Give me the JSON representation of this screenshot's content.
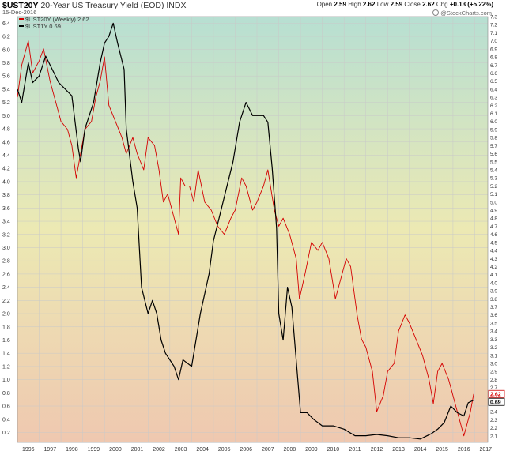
{
  "header": {
    "symbol": "$UST20Y",
    "title": "20-Year US Treasury Yield (EOD)",
    "exchange": "INDX",
    "date": "15-Dec-2016",
    "open_label": "Open",
    "open": "2.59",
    "high_label": "High",
    "high": "2.62",
    "low_label": "Low",
    "low": "2.59",
    "close_label": "Close",
    "close": "2.62",
    "chg_label": "Chg",
    "chg": "+0.13 (+5.22%)",
    "brand": "@StockCharts.com"
  },
  "legend": [
    {
      "label": "$UST20Y (Weekly) 2.62",
      "color": "#d40000"
    },
    {
      "label": "$UST1Y 0.69",
      "color": "#000000"
    }
  ],
  "colors": {
    "red_series": "#d40000",
    "black_series": "#000000",
    "bg_top": "#b7dfd2",
    "bg_mid": "#ece9b3",
    "bg_bottom": "#efc8b0"
  },
  "chart_data": {
    "type": "line",
    "grid": true,
    "legend_position": "top-left",
    "x_ticks": [
      "1996",
      "1997",
      "1998",
      "1999",
      "2000",
      "2001",
      "2002",
      "2003",
      "2004",
      "2005",
      "2006",
      "2007",
      "2008",
      "2009",
      "2010",
      "2011",
      "2012",
      "2013",
      "2014",
      "2015",
      "2016",
      "2017"
    ],
    "xlim": [
      1996.0,
      2017.6
    ],
    "left_axis": {
      "ylim": [
        0.05,
        6.5
      ],
      "ticks": [
        0.2,
        0.4,
        0.6,
        0.8,
        1.0,
        1.2,
        1.4,
        1.6,
        1.8,
        2.0,
        2.2,
        2.4,
        2.6,
        2.8,
        3.0,
        3.2,
        3.4,
        3.6,
        3.8,
        4.0,
        4.2,
        4.4,
        4.6,
        4.8,
        5.0,
        5.2,
        5.4,
        5.6,
        5.8,
        6.0,
        6.2,
        6.4
      ]
    },
    "right_axis": {
      "ylim": [
        2.02,
        7.3
      ],
      "ticks": [
        2.1,
        2.2,
        2.3,
        2.4,
        2.5,
        2.6,
        2.7,
        2.8,
        2.9,
        3.0,
        3.1,
        3.2,
        3.3,
        3.4,
        3.5,
        3.6,
        3.7,
        3.8,
        3.9,
        4.0,
        4.1,
        4.2,
        4.3,
        4.4,
        4.5,
        4.6,
        4.7,
        4.8,
        4.9,
        5.0,
        5.1,
        5.2,
        5.3,
        5.4,
        5.5,
        5.6,
        5.7,
        5.8,
        5.9,
        6.0,
        6.1,
        6.2,
        6.3,
        6.4,
        6.5,
        6.6,
        6.7,
        6.8,
        6.9,
        7.0,
        7.1,
        7.2,
        7.3
      ]
    },
    "series": [
      {
        "name": "$UST20Y (Weekly)",
        "axis": "right",
        "color": "#d40000",
        "x": [
          1996.0,
          1996.2,
          1996.5,
          1996.7,
          1997.0,
          1997.2,
          1997.5,
          1997.8,
          1998.0,
          1998.3,
          1998.5,
          1998.7,
          1998.9,
          1999.1,
          1999.4,
          1999.6,
          1999.8,
          2000.0,
          2000.2,
          2000.5,
          2000.8,
          2001.0,
          2001.3,
          2001.5,
          2001.8,
          2002.0,
          2002.3,
          2002.5,
          2002.7,
          2002.9,
          2003.1,
          2003.4,
          2003.5,
          2003.7,
          2003.9,
          2004.1,
          2004.3,
          2004.6,
          2004.9,
          2005.2,
          2005.5,
          2005.8,
          2006.0,
          2006.3,
          2006.5,
          2006.8,
          2007.0,
          2007.3,
          2007.5,
          2007.8,
          2008.0,
          2008.2,
          2008.5,
          2008.8,
          2008.95,
          2009.2,
          2009.5,
          2009.8,
          2010.0,
          2010.3,
          2010.6,
          2010.8,
          2011.1,
          2011.3,
          2011.6,
          2011.8,
          2012.0,
          2012.3,
          2012.5,
          2012.8,
          2013.0,
          2013.3,
          2013.5,
          2013.8,
          2014.0,
          2014.3,
          2014.6,
          2014.9,
          2015.1,
          2015.3,
          2015.5,
          2015.8,
          2016.0,
          2016.3,
          2016.5,
          2016.8,
          2016.95
        ],
        "y": [
          6.3,
          6.7,
          7.0,
          6.6,
          6.75,
          6.9,
          6.5,
          6.2,
          6.0,
          5.9,
          5.7,
          5.3,
          5.6,
          5.9,
          6.0,
          6.3,
          6.5,
          6.8,
          6.2,
          6.0,
          5.8,
          5.6,
          5.8,
          5.6,
          5.4,
          5.8,
          5.7,
          5.4,
          5.0,
          5.1,
          4.9,
          4.6,
          5.3,
          5.2,
          5.2,
          5.0,
          5.4,
          5.0,
          4.9,
          4.7,
          4.6,
          4.8,
          4.9,
          5.3,
          5.2,
          4.9,
          5.0,
          5.2,
          5.4,
          4.9,
          4.7,
          4.8,
          4.6,
          4.3,
          3.8,
          4.1,
          4.5,
          4.4,
          4.5,
          4.3,
          3.8,
          4.0,
          4.3,
          4.2,
          3.6,
          3.3,
          3.2,
          2.9,
          2.4,
          2.6,
          2.9,
          3.0,
          3.4,
          3.6,
          3.5,
          3.3,
          3.1,
          2.8,
          2.5,
          2.9,
          3.0,
          2.8,
          2.6,
          2.3,
          2.1,
          2.4,
          2.62
        ]
      },
      {
        "name": "$UST1Y",
        "axis": "left",
        "color": "#000000",
        "x": [
          1996.0,
          1996.2,
          1996.5,
          1996.7,
          1997.0,
          1997.3,
          1997.6,
          1997.9,
          1998.2,
          1998.5,
          1998.8,
          1998.9,
          1999.1,
          1999.5,
          1999.8,
          2000.0,
          2000.2,
          2000.4,
          2000.6,
          2000.9,
          2001.0,
          2001.3,
          2001.5,
          2001.7,
          2002.0,
          2002.2,
          2002.4,
          2002.6,
          2002.8,
          2003.0,
          2003.2,
          2003.4,
          2003.6,
          2003.8,
          2004.0,
          2004.2,
          2004.4,
          2004.6,
          2004.8,
          2005.0,
          2005.3,
          2005.6,
          2005.9,
          2006.2,
          2006.5,
          2006.8,
          2007.0,
          2007.3,
          2007.5,
          2007.7,
          2007.9,
          2008.0,
          2008.2,
          2008.4,
          2008.6,
          2008.8,
          2009.0,
          2009.3,
          2009.6,
          2010.0,
          2010.5,
          2011.0,
          2011.5,
          2012.0,
          2012.5,
          2013.0,
          2013.5,
          2014.0,
          2014.5,
          2015.0,
          2015.3,
          2015.6,
          2015.9,
          2016.2,
          2016.5,
          2016.7,
          2016.95
        ],
        "y": [
          5.4,
          5.2,
          5.8,
          5.5,
          5.6,
          5.9,
          5.7,
          5.5,
          5.4,
          5.3,
          4.5,
          4.3,
          4.8,
          5.2,
          5.8,
          6.1,
          6.2,
          6.4,
          6.1,
          5.7,
          4.8,
          4.0,
          3.6,
          2.4,
          2.0,
          2.2,
          2.0,
          1.6,
          1.4,
          1.3,
          1.2,
          1.0,
          1.3,
          1.25,
          1.2,
          1.6,
          2.0,
          2.3,
          2.6,
          3.1,
          3.5,
          3.9,
          4.3,
          4.9,
          5.2,
          5.0,
          5.0,
          5.0,
          4.9,
          4.2,
          3.3,
          2.0,
          1.6,
          2.4,
          2.1,
          1.3,
          0.5,
          0.5,
          0.4,
          0.3,
          0.3,
          0.25,
          0.15,
          0.15,
          0.17,
          0.15,
          0.12,
          0.12,
          0.1,
          0.18,
          0.25,
          0.35,
          0.6,
          0.5,
          0.45,
          0.65,
          0.69
        ]
      }
    ],
    "last_value_labels": [
      "2.62",
      "0.69"
    ]
  }
}
